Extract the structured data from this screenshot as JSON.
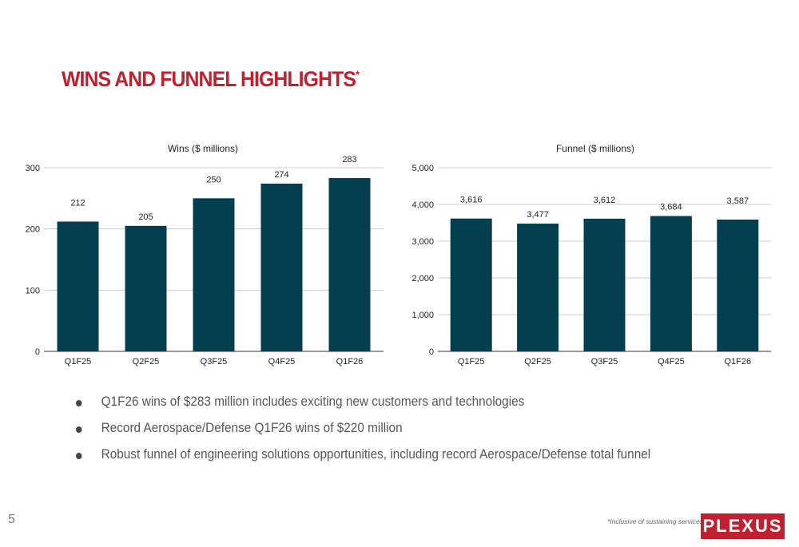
{
  "title": "WINS AND FUNNEL HIGHLIGHTS",
  "title_mark": "*",
  "bullets": [
    "Q1F26 wins of $283 million includes exciting new customers and technologies",
    "Record Aerospace/Defense Q1F26 wins of $220 million",
    "Robust funnel of engineering solutions opportunities, including record Aerospace/Defense total funnel"
  ],
  "page_number": "5",
  "footnote": "*Inclusive of sustaining services",
  "logo": "PLEXUS",
  "chart_data": [
    {
      "type": "bar",
      "title": "Wins ($ millions)",
      "categories": [
        "Q1F25",
        "Q2F25",
        "Q3F25",
        "Q4F25",
        "Q1F26"
      ],
      "values": [
        212,
        205,
        250,
        274,
        283
      ],
      "labels": [
        "212",
        "205",
        "250",
        "274",
        "283"
      ],
      "ylim": [
        0,
        300
      ],
      "yticks": [
        "0",
        "100",
        "200",
        "300"
      ],
      "grid": true,
      "color": "#033f4f"
    },
    {
      "type": "bar",
      "title": "Funnel ($ millions)",
      "categories": [
        "Q1F25",
        "Q2F25",
        "Q3F25",
        "Q4F25",
        "Q1F26"
      ],
      "values": [
        3616,
        3477,
        3612,
        3684,
        3587
      ],
      "labels": [
        "3,616",
        "3,477",
        "3,612",
        "3,684",
        "3,587"
      ],
      "ylim": [
        0,
        5000
      ],
      "yticks": [
        "0",
        "1,000",
        "2,000",
        "3,000",
        "4,000",
        "5,000"
      ],
      "grid": true,
      "color": "#033f4f"
    }
  ]
}
